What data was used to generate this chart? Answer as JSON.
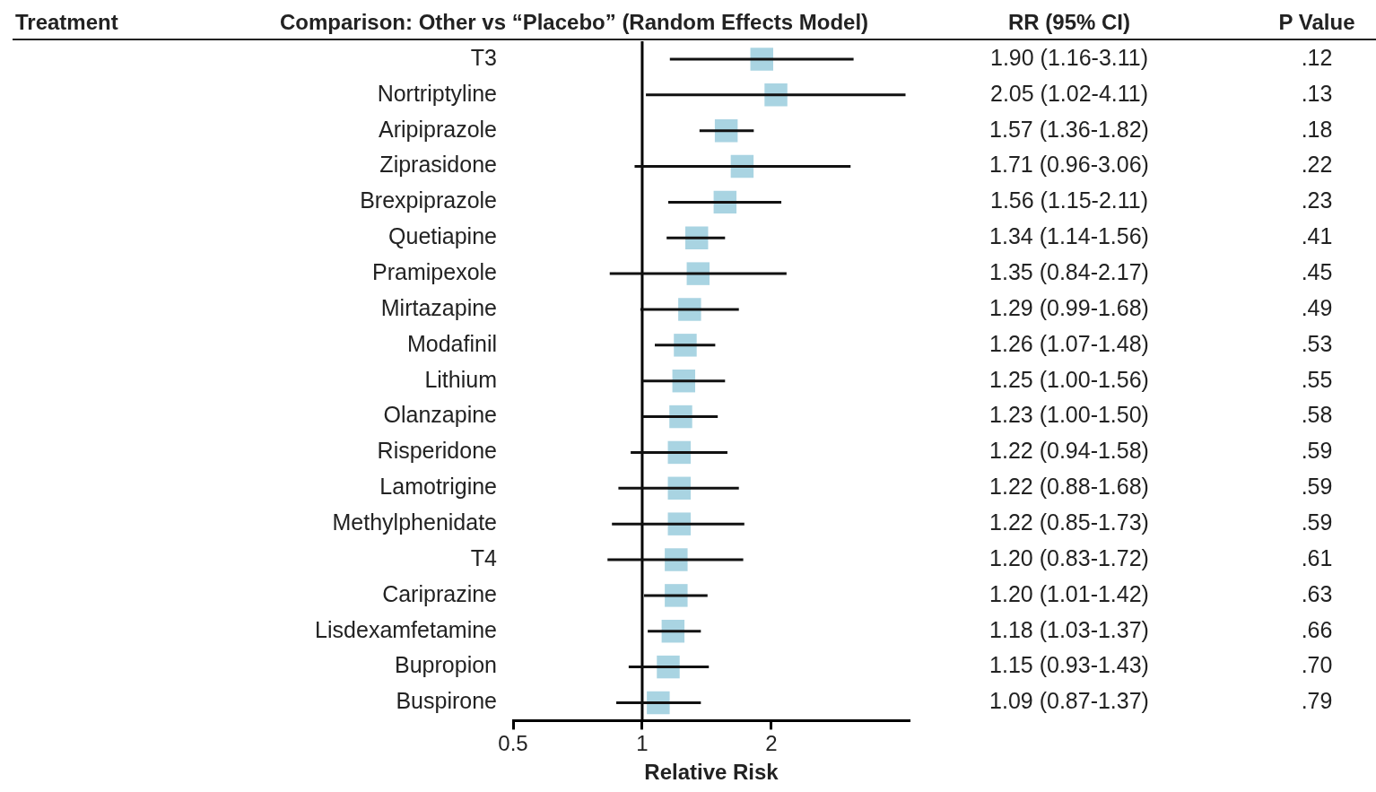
{
  "chart_data": {
    "type": "scatter",
    "orientation": "horizontal",
    "title": "Comparison: Other vs “Placebo” (Random Effects Model)",
    "xlabel": "Relative Risk",
    "categories": [
      "T3",
      "Nortriptyline",
      "Aripiprazole",
      "Ziprasidone",
      "Brexpiprazole",
      "Quetiapine",
      "Pramipexole",
      "Mirtazapine",
      "Modafinil",
      "Lithium",
      "Olanzapine",
      "Risperidone",
      "Lamotrigine",
      "Methylphenidate",
      "T4",
      "Cariprazine",
      "Lisdexamfetamine",
      "Bupropion",
      "Buspirone"
    ],
    "values": [
      1.9,
      2.05,
      1.57,
      1.71,
      1.56,
      1.34,
      1.35,
      1.29,
      1.26,
      1.25,
      1.23,
      1.22,
      1.22,
      1.22,
      1.2,
      1.2,
      1.18,
      1.15,
      1.09
    ],
    "errors": [
      [
        1.16,
        3.11
      ],
      [
        1.02,
        4.11
      ],
      [
        1.36,
        1.82
      ],
      [
        0.96,
        3.06
      ],
      [
        1.15,
        2.11
      ],
      [
        1.14,
        1.56
      ],
      [
        0.84,
        2.17
      ],
      [
        0.99,
        1.68
      ],
      [
        1.07,
        1.48
      ],
      [
        1.0,
        1.56
      ],
      [
        1.0,
        1.5
      ],
      [
        0.94,
        1.58
      ],
      [
        0.88,
        1.68
      ],
      [
        0.85,
        1.73
      ],
      [
        0.83,
        1.72
      ],
      [
        1.01,
        1.42
      ],
      [
        1.03,
        1.37
      ],
      [
        0.93,
        1.43
      ],
      [
        0.87,
        1.37
      ]
    ],
    "value_labels": [
      "1.90 (1.16-3.11)",
      "2.05 (1.02-4.11)",
      "1.57 (1.36-1.82)",
      "1.71 (0.96-3.06)",
      "1.56 (1.15-2.11)",
      "1.34 (1.14-1.56)",
      "1.35 (0.84-2.17)",
      "1.29 (0.99-1.68)",
      "1.26 (1.07-1.48)",
      "1.25 (1.00-1.56)",
      "1.23 (1.00-1.50)",
      "1.22 (0.94-1.58)",
      "1.22 (0.88-1.68)",
      "1.22 (0.85-1.73)",
      "1.20 (0.83-1.72)",
      "1.20 (1.01-1.42)",
      "1.18 (1.03-1.37)",
      "1.15 (0.93-1.43)",
      "1.09 (0.87-1.37)"
    ],
    "color": "#a9d4e2",
    "marker": "square",
    "log": "x",
    "xlim": [
      0.5,
      4.2
    ],
    "xticks": [
      0.5,
      1,
      2
    ],
    "ref_lines": [
      {
        "axis": "x",
        "value": 1
      }
    ],
    "annotations": [
      "Treatment",
      "RR (95% CI)",
      "P Value",
      ".12",
      ".13",
      ".18",
      ".22",
      ".23",
      ".41",
      ".45",
      ".49",
      ".53",
      ".55",
      ".58",
      ".59",
      ".59",
      ".59",
      ".61",
      ".63",
      ".66",
      ".70",
      ".79"
    ]
  }
}
